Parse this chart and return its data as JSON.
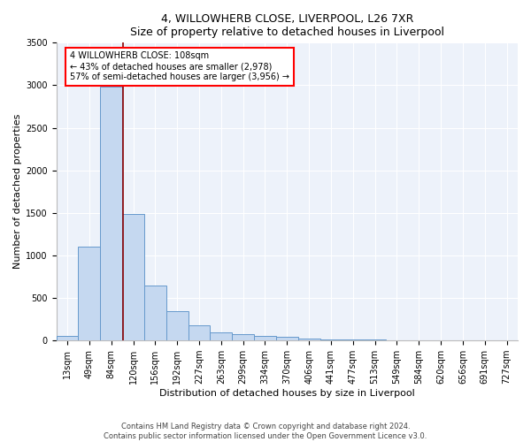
{
  "title1": "4, WILLOWHERB CLOSE, LIVERPOOL, L26 7XR",
  "title2": "Size of property relative to detached houses in Liverpool",
  "xlabel": "Distribution of detached houses by size in Liverpool",
  "ylabel": "Number of detached properties",
  "bar_labels": [
    "13sqm",
    "49sqm",
    "84sqm",
    "120sqm",
    "156sqm",
    "192sqm",
    "227sqm",
    "263sqm",
    "299sqm",
    "334sqm",
    "370sqm",
    "406sqm",
    "441sqm",
    "477sqm",
    "513sqm",
    "549sqm",
    "584sqm",
    "620sqm",
    "656sqm",
    "691sqm",
    "727sqm"
  ],
  "bar_values": [
    50,
    1100,
    2980,
    1490,
    650,
    340,
    180,
    100,
    70,
    50,
    40,
    20,
    15,
    10,
    8,
    5,
    4,
    3,
    2,
    2,
    1
  ],
  "bar_color": "#c5d8f0",
  "bar_edge_color": "#6699cc",
  "vline_x_index": 2.55,
  "vline_color": "#8b0000",
  "annotation_text_line1": "4 WILLOWHERB CLOSE: 108sqm",
  "annotation_text_line2": "← 43% of detached houses are smaller (2,978)",
  "annotation_text_line3": "57% of semi-detached houses are larger (3,956) →",
  "ylim": [
    0,
    3500
  ],
  "yticks": [
    0,
    500,
    1000,
    1500,
    2000,
    2500,
    3000,
    3500
  ],
  "bg_color": "#edf2fa",
  "footer1": "Contains HM Land Registry data © Crown copyright and database right 2024.",
  "footer2": "Contains public sector information licensed under the Open Government Licence v3.0.",
  "title_fontsize": 9,
  "axis_label_fontsize": 8,
  "tick_fontsize": 7,
  "footer_fontsize": 6
}
